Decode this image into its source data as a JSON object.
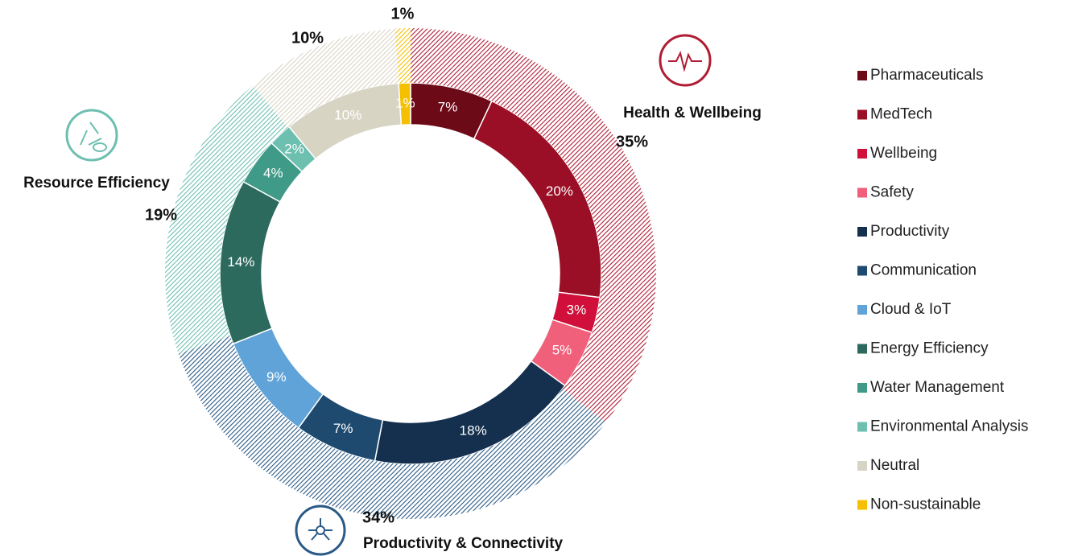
{
  "chart_data": {
    "type": "donut",
    "rings": [
      {
        "categories": [
          "Pharmaceuticals",
          "MedTech",
          "Wellbeing",
          "Safety",
          "Productivity",
          "Communication",
          "Cloud & IoT",
          "Energy Efficiency",
          "Water Management",
          "Environmental Analysis",
          "Neutral",
          "Non-sustainable"
        ],
        "values": [
          7,
          20,
          3,
          5,
          18,
          7,
          9,
          14,
          4,
          2,
          10,
          1
        ],
        "value_labels": [
          "7%",
          "20%",
          "3%",
          "5%",
          "18%",
          "7%",
          "9%",
          "14%",
          "4%",
          "2%",
          "10%",
          "1%"
        ],
        "colors": [
          "#6d0a18",
          "#9a0f25",
          "#d0103a",
          "#f0607a",
          "#14304e",
          "#1f4a70",
          "#5fa3d8",
          "#2c6a5e",
          "#3f9a88",
          "#6dbfb0",
          "#d8d4c4",
          "#f5c000"
        ]
      },
      {
        "categories": [
          "Health & Wellbeing",
          "Productivity & Connectivity",
          "Resource Efficiency",
          null,
          null
        ],
        "values": [
          35,
          34,
          19,
          10,
          1
        ],
        "value_labels": [
          "35%",
          "34%",
          "19%",
          "10%",
          "1%"
        ],
        "colors": [
          "#b01c33",
          "#2a5a86",
          "#6dbfb0",
          "#d8d4c4",
          "#f5c000"
        ],
        "hatched": true
      }
    ],
    "legend": "right"
  }
}
